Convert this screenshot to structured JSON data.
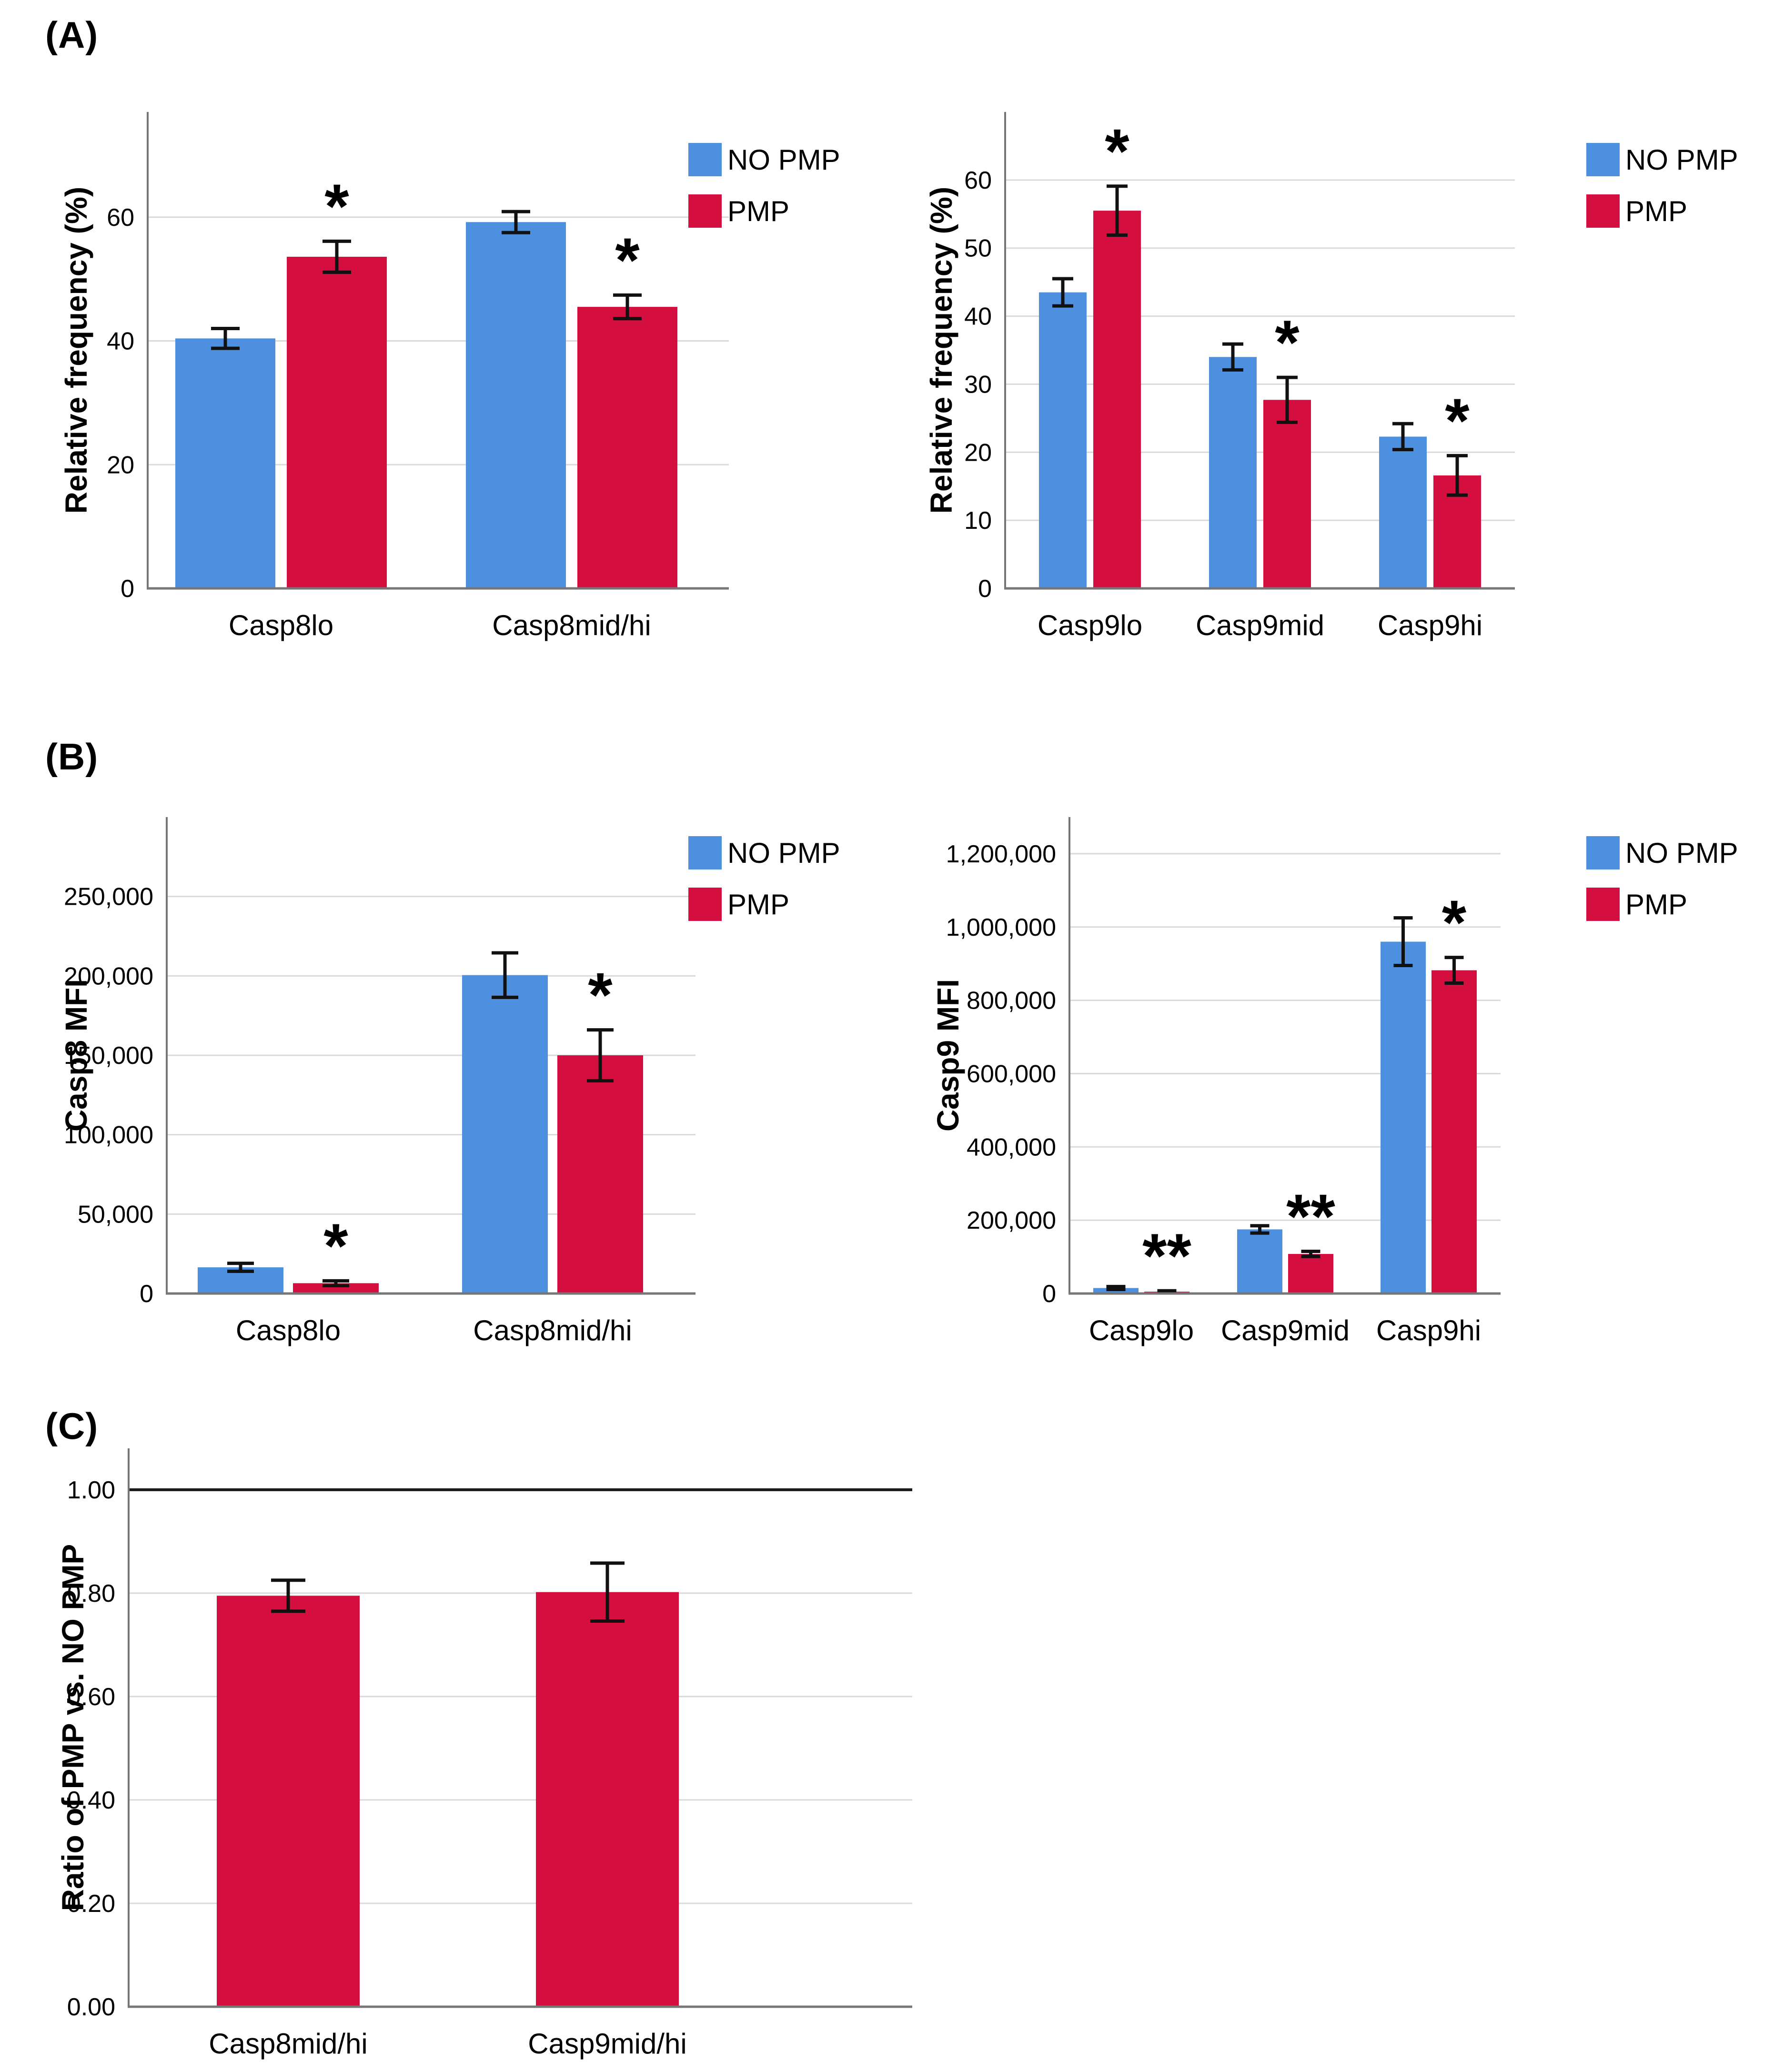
{
  "panels": {
    "a": {
      "label": "(A)"
    },
    "b": {
      "label": "(B)"
    },
    "c": {
      "label": "(C)"
    }
  },
  "legend": {
    "no_pmp": "NO PMP",
    "pmp": "PMP"
  },
  "colors": {
    "no_pmp": "#4E90E0",
    "pmp": "#D40F3F",
    "gridline": "#D9D9D9",
    "axis": "#767676",
    "error_bar": "#111111",
    "reference_line": "#1A1A1A",
    "text": "#000000"
  },
  "chart_data": [
    {
      "id": "a-left",
      "panel": "A",
      "type": "bar",
      "title": "",
      "xlabel": "",
      "ylabel": "Relative frequency (%)",
      "categories": [
        "Casp8lo",
        "Casp8mid/hi"
      ],
      "series": [
        {
          "name": "NO PMP",
          "color_key": "no_pmp",
          "values": [
            40.4,
            59.2
          ],
          "errors": [
            1.6,
            1.7
          ],
          "sig": [
            "",
            ""
          ]
        },
        {
          "name": "PMP",
          "color_key": "pmp",
          "values": [
            53.6,
            45.5
          ],
          "errors": [
            2.5,
            1.9
          ],
          "sig": [
            "*",
            "*"
          ]
        }
      ],
      "ylim": [
        0,
        77
      ],
      "yticks": [
        0,
        20,
        40,
        60
      ],
      "ytick_labels": [
        "0",
        "20",
        "40",
        "60"
      ],
      "grid": true,
      "legend_visible": true,
      "legend_position": "top-right"
    },
    {
      "id": "a-right",
      "panel": "A",
      "type": "bar",
      "title": "",
      "xlabel": "",
      "ylabel": "Relative frequency (%)",
      "categories": [
        "Casp9lo",
        "Casp9mid",
        "Casp9hi"
      ],
      "series": [
        {
          "name": "NO PMP",
          "color_key": "no_pmp",
          "values": [
            43.5,
            34.0,
            22.3
          ],
          "errors": [
            2.0,
            1.9,
            1.9
          ],
          "sig": [
            "",
            "",
            ""
          ]
        },
        {
          "name": "PMP",
          "color_key": "pmp",
          "values": [
            55.5,
            27.7,
            16.6
          ],
          "errors": [
            3.6,
            3.3,
            2.9
          ],
          "sig": [
            "*",
            "*",
            "*"
          ]
        }
      ],
      "ylim": [
        0,
        70
      ],
      "yticks": [
        0,
        10,
        20,
        30,
        40,
        50,
        60
      ],
      "ytick_labels": [
        "0",
        "10",
        "20",
        "30",
        "40",
        "50",
        "60"
      ],
      "grid": true,
      "legend_visible": true,
      "legend_position": "top-right"
    },
    {
      "id": "b-left",
      "panel": "B",
      "type": "bar",
      "title": "",
      "xlabel": "",
      "ylabel": "Casp8 MFI",
      "categories": [
        "Casp8lo",
        "Casp8mid/hi"
      ],
      "series": [
        {
          "name": "NO PMP",
          "color_key": "no_pmp",
          "values": [
            16500,
            200500
          ],
          "errors": [
            2500,
            14000
          ],
          "sig": [
            "",
            ""
          ]
        },
        {
          "name": "PMP",
          "color_key": "pmp",
          "values": [
            6500,
            150000
          ],
          "errors": [
            1500,
            16000
          ],
          "sig": [
            "*",
            "*"
          ]
        }
      ],
      "ylim": [
        0,
        300000
      ],
      "yticks": [
        0,
        50000,
        100000,
        150000,
        200000,
        250000
      ],
      "ytick_labels": [
        "0",
        "50,000",
        "100,000",
        "150,000",
        "200,000",
        "250,000"
      ],
      "grid": true,
      "legend_visible": true,
      "legend_position": "top-right"
    },
    {
      "id": "b-right",
      "panel": "B",
      "type": "bar",
      "title": "",
      "xlabel": "",
      "ylabel": "Casp9 MFI",
      "categories": [
        "Casp9lo",
        "Casp9mid",
        "Casp9hi"
      ],
      "series": [
        {
          "name": "NO PMP",
          "color_key": "no_pmp",
          "values": [
            15000,
            175000,
            960000
          ],
          "errors": [
            4000,
            10000,
            65000
          ],
          "sig": [
            "",
            "",
            ""
          ]
        },
        {
          "name": "PMP",
          "color_key": "pmp",
          "values": [
            5000,
            108000,
            882000
          ],
          "errors": [
            2500,
            7000,
            35000
          ],
          "sig": [
            "**",
            "**",
            "*"
          ]
        }
      ],
      "ylim": [
        0,
        1300000
      ],
      "yticks": [
        0,
        200000,
        400000,
        600000,
        800000,
        1000000,
        1200000
      ],
      "ytick_labels": [
        "0",
        "200,000",
        "400,000",
        "600,000",
        "800,000",
        "1,000,000",
        "1,200,000"
      ],
      "grid": true,
      "legend_visible": true,
      "legend_position": "top-right"
    },
    {
      "id": "c",
      "panel": "C",
      "type": "bar",
      "title": "",
      "xlabel": "",
      "ylabel": "Ratio of PMP vs. NO PMP",
      "categories": [
        "Casp8mid/hi",
        "Casp9mid/hi"
      ],
      "series": [
        {
          "name": "PMP",
          "color_key": "pmp",
          "values": [
            0.795,
            0.802
          ],
          "errors": [
            0.03,
            0.056
          ],
          "sig": [
            "",
            ""
          ]
        }
      ],
      "ylim": [
        0,
        1.08
      ],
      "yticks": [
        0,
        0.2,
        0.4,
        0.6,
        0.8,
        1.0
      ],
      "ytick_labels": [
        "0.00",
        "0.20",
        "0.40",
        "0.60",
        "0.80",
        "1.00"
      ],
      "reference_line": 1.0,
      "grid": true,
      "legend_visible": false
    }
  ]
}
